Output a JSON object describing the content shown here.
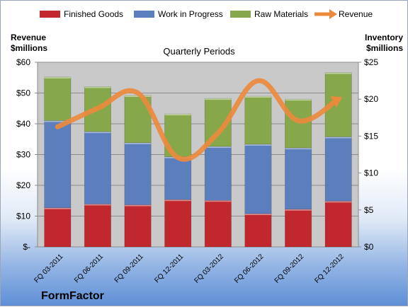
{
  "brand": "FormFactor",
  "colors": {
    "finished_goods": "#c0282d",
    "work_in_progress": "#5b7fbd",
    "raw_materials": "#86a84a",
    "revenue": "#ec8a3c",
    "plot_background": "#c9c9c9"
  },
  "chart_data": {
    "type": "bar",
    "subtype": "stacked bar with line overlay",
    "title": "Quarterly Periods",
    "left_axis_label": [
      "Revenue",
      "$millions"
    ],
    "right_axis_label": [
      "Inventory",
      "$millions"
    ],
    "left_ylim": [
      0,
      60
    ],
    "right_ylim": [
      0,
      25
    ],
    "left_ticks": [
      "$-",
      "$10",
      "$20",
      "$30",
      "$40",
      "$50",
      "$60"
    ],
    "right_ticks": [
      "$0",
      "$5",
      "$10",
      "$15",
      "$20",
      "$25"
    ],
    "grid": true,
    "legend_position": "top",
    "categories": [
      "FQ 03-2011",
      "FQ 06-2011",
      "FQ 09-2011",
      "FQ 12-2011",
      "FQ 03-2012",
      "FQ 06-2012",
      "FQ 09-2012",
      "FQ 12-2012"
    ],
    "series": [
      {
        "name": "Finished Goods",
        "axis": "right",
        "values": [
          5.3,
          5.8,
          5.7,
          6.4,
          6.3,
          4.5,
          5.1,
          6.2
        ]
      },
      {
        "name": "Work in Progress",
        "axis": "right",
        "values": [
          11.8,
          9.8,
          8.4,
          5.8,
          7.3,
          9.4,
          8.3,
          8.7
        ]
      },
      {
        "name": "Raw Materials",
        "axis": "right",
        "values": [
          5.9,
          6.1,
          6.4,
          5.8,
          6.5,
          6.5,
          6.6,
          8.7
        ]
      },
      {
        "name": "Revenue",
        "axis": "left",
        "type": "line",
        "values": [
          39,
          45,
          50,
          29,
          37,
          54,
          41,
          48
        ]
      }
    ]
  }
}
